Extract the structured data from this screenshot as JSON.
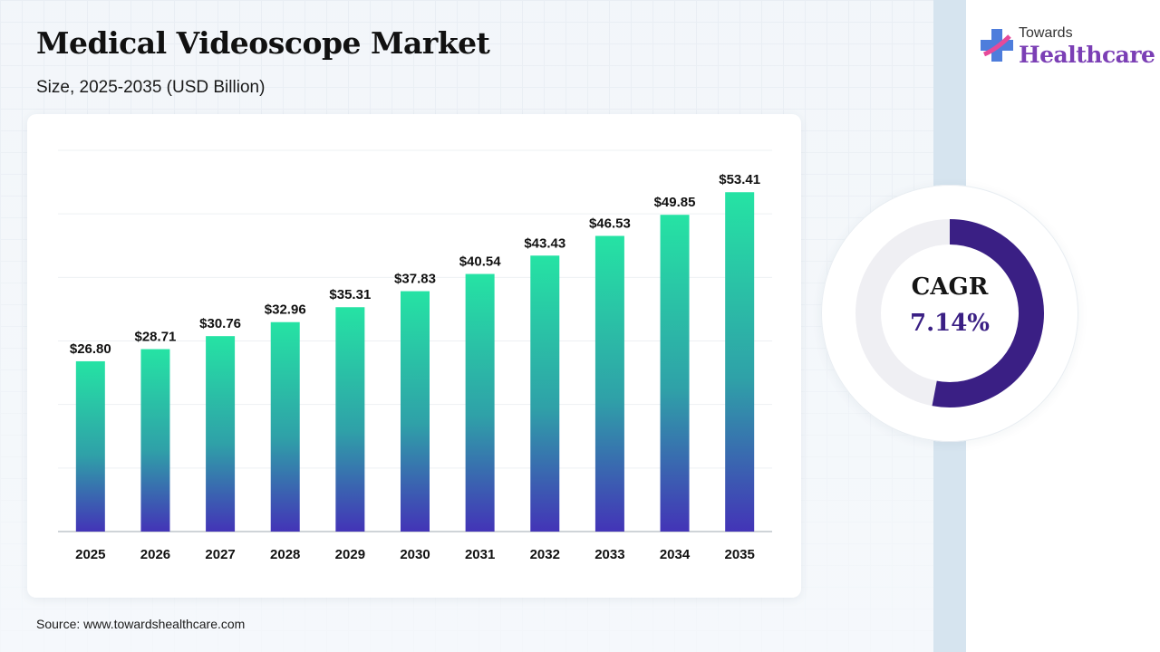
{
  "header": {
    "title": "Medical Videoscope Market",
    "subtitle": "Size, 2025-2035 (USD Billion)"
  },
  "logo": {
    "small_text": "Towards",
    "big_text": "Healthcare",
    "icon": "cross-logo-icon",
    "colors": [
      "#7b3fb5",
      "#3b6fd8",
      "#e64a9a"
    ]
  },
  "cagr": {
    "label": "CAGR",
    "value": "7.14%",
    "color": "#3a1f84"
  },
  "source": "Source: www.towardshealthcare.com",
  "chart_data": {
    "type": "bar",
    "categories": [
      "2025",
      "2026",
      "2027",
      "2028",
      "2029",
      "2030",
      "2031",
      "2032",
      "2033",
      "2034",
      "2035"
    ],
    "values": [
      26.8,
      28.71,
      30.76,
      32.96,
      35.31,
      37.83,
      40.54,
      43.43,
      46.53,
      49.85,
      53.41
    ],
    "value_labels": [
      "$26.80",
      "$28.71",
      "$30.76",
      "$32.96",
      "$35.31",
      "$37.83",
      "$40.54",
      "$43.43",
      "$46.53",
      "$49.85",
      "$53.41"
    ],
    "title": "Medical Videoscope Market",
    "subtitle": "Size, 2025-2035 (USD Billion)",
    "ylim": [
      0,
      60
    ],
    "grid": true,
    "legend": "none",
    "bar_gradient": [
      "#25e3a4",
      "#2fa1a8",
      "#4334b7"
    ]
  }
}
